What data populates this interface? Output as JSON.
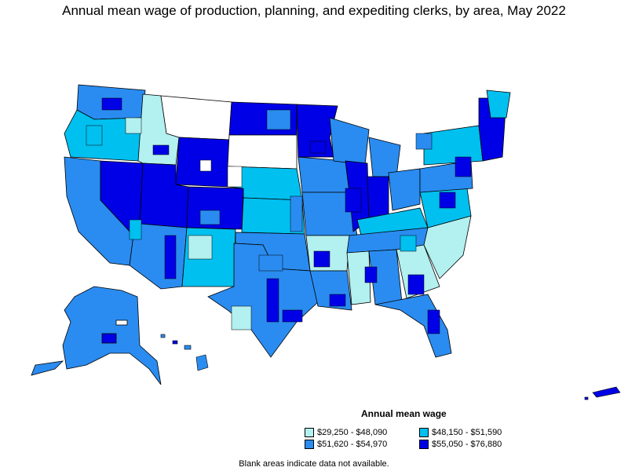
{
  "title": "Annual mean wage of production, planning, and expediting clerks, by area, May 2022",
  "legend": {
    "title": "Annual mean wage",
    "items": [
      {
        "label": "$29,250 - $48,090",
        "color": "#b3f0f0"
      },
      {
        "label": "$48,150 - $51,590",
        "color": "#00c0f0"
      },
      {
        "label": "$51,620 - $54,970",
        "color": "#2a8cf0"
      },
      {
        "label": "$55,050 - $76,880",
        "color": "#0000e6"
      }
    ]
  },
  "footnote": "Blank areas indicate data not available.",
  "colors": {
    "q1": "#b3f0f0",
    "q2": "#00c0f0",
    "q3": "#2a8cf0",
    "q4": "#0000e6",
    "blank": "#ffffff"
  }
}
